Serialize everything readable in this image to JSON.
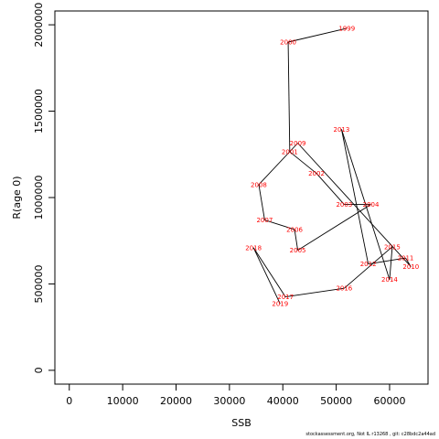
{
  "chart_data": {
    "type": "line",
    "xlabel": "SSB",
    "ylabel": "R(age 0)",
    "xlim": [
      -2700,
      67200
    ],
    "ylim": [
      -80000,
      2080000
    ],
    "xticks": [
      0,
      10000,
      20000,
      30000,
      40000,
      50000,
      60000
    ],
    "yticks": [
      0,
      500000,
      1000000,
      1500000,
      2000000
    ],
    "grid": false,
    "line_color": "#000000",
    "label_color": "#ff0000",
    "points": [
      {
        "year": "1999",
        "x": 52000,
        "y": 1980000
      },
      {
        "year": "2000",
        "x": 41000,
        "y": 1900000
      },
      {
        "year": "2001",
        "x": 41300,
        "y": 1265000
      },
      {
        "year": "2002",
        "x": 46300,
        "y": 1140000
      },
      {
        "year": "2003",
        "x": 51500,
        "y": 960000
      },
      {
        "year": "2004",
        "x": 56500,
        "y": 960000
      },
      {
        "year": "2005",
        "x": 42800,
        "y": 695000
      },
      {
        "year": "2006",
        "x": 42200,
        "y": 815000
      },
      {
        "year": "2007",
        "x": 36600,
        "y": 870000
      },
      {
        "year": "2008",
        "x": 35500,
        "y": 1075000
      },
      {
        "year": "2009",
        "x": 42800,
        "y": 1315000
      },
      {
        "year": "2010",
        "x": 64000,
        "y": 600000
      },
      {
        "year": "2011",
        "x": 63000,
        "y": 650000
      },
      {
        "year": "2012",
        "x": 56000,
        "y": 615000
      },
      {
        "year": "2013",
        "x": 51000,
        "y": 1395000
      },
      {
        "year": "2014",
        "x": 60000,
        "y": 525000
      },
      {
        "year": "2015",
        "x": 60500,
        "y": 715000
      },
      {
        "year": "2016",
        "x": 51500,
        "y": 475000
      },
      {
        "year": "2017",
        "x": 40500,
        "y": 425000
      },
      {
        "year": "2018",
        "x": 34500,
        "y": 710000
      },
      {
        "year": "2019",
        "x": 39500,
        "y": 385000
      }
    ]
  },
  "footer": "stockassessment.org, Not IL r13268 , git: c28bdc2a44ad"
}
